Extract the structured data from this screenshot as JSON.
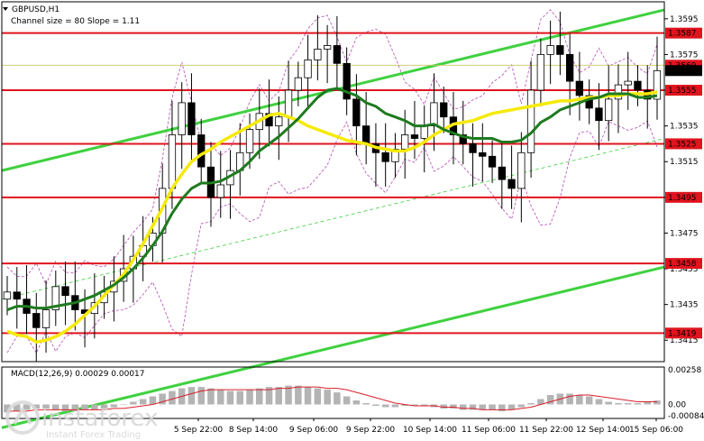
{
  "chart_data": {
    "type": "line",
    "title": "GBPUSD,H1",
    "subtitle": "Channel size = 80 Slope = 1.11",
    "price_axis": {
      "ylim": [
        1.3403,
        1.3603
      ],
      "ticks": [
        "1.3595",
        "1.3575",
        "1.3555",
        "1.3535",
        "1.3515",
        "1.3495",
        "1.3475",
        "1.3455",
        "1.3435",
        "1.3415"
      ]
    },
    "x_tick_labels": [
      "5 Sep 22:00",
      "8 Sep 14:00",
      "9 Sep 06:00",
      "9 Sep 22:00",
      "10 Sep 14:00",
      "11 Sep 06:00",
      "11 Sep 22:00",
      "12 Sep 14:00",
      "15 Sep 06:00"
    ],
    "levels": [
      {
        "price": 1.3587,
        "label": "1.3587"
      },
      {
        "price": 1.3555,
        "label": "1.3555"
      },
      {
        "price": 1.3525,
        "label": "1.3525"
      },
      {
        "price": 1.3495,
        "label": "1.3495"
      },
      {
        "price": 1.3458,
        "label": "1.3458"
      },
      {
        "price": 1.3419,
        "label": "1.3419"
      }
    ],
    "current_price": {
      "price": 1.3566,
      "label": "1.3566"
    },
    "behind_label": "1.3569",
    "close_series": [
      1.3442,
      1.3438,
      1.343,
      1.3422,
      1.3432,
      1.3445,
      1.344,
      1.3432,
      1.343,
      1.3436,
      1.3442,
      1.3448,
      1.3455,
      1.3462,
      1.3468,
      1.3475,
      1.35,
      1.353,
      1.3548,
      1.353,
      1.3512,
      1.3495,
      1.3502,
      1.351,
      1.352,
      1.3533,
      1.3542,
      1.3535,
      1.354,
      1.3555,
      1.3562,
      1.3572,
      1.3578,
      1.358,
      1.357,
      1.355,
      1.3535,
      1.3525,
      1.352,
      1.3515,
      1.3522,
      1.353,
      1.3528,
      1.3535,
      1.3548,
      1.354,
      1.353,
      1.3525,
      1.352,
      1.3518,
      1.3512,
      1.3505,
      1.35,
      1.352,
      1.3555,
      1.3575,
      1.358,
      1.3575,
      1.356,
      1.3552,
      1.3545,
      1.3538,
      1.355,
      1.3558,
      1.356,
      1.3555,
      1.355,
      1.3566
    ],
    "ma_fast": [
      1.3432,
      1.3434,
      1.3434,
      1.3433,
      1.3433,
      1.3434,
      1.3435,
      1.3436,
      1.3438,
      1.344,
      1.3443,
      1.3446,
      1.345,
      1.3455,
      1.3461,
      1.3468,
      1.3476,
      1.3486,
      1.3494,
      1.35,
      1.3503,
      1.3503,
      1.3504,
      1.3507,
      1.351,
      1.3515,
      1.3521,
      1.3525,
      1.3529,
      1.3534,
      1.3539,
      1.3545,
      1.3551,
      1.3555,
      1.3556,
      1.3554,
      1.3552,
      1.3548,
      1.3546,
      1.3542,
      1.354,
      1.3538,
      1.3535,
      1.3535,
      1.3536,
      1.3533,
      1.3531,
      1.3529,
      1.3528,
      1.3528,
      1.3528,
      1.3526,
      1.3526,
      1.3527,
      1.3531,
      1.3537,
      1.354,
      1.3544,
      1.3546,
      1.3548,
      1.355,
      1.3551,
      1.3553,
      1.3553,
      1.3553,
      1.3551,
      1.3551,
      1.3552
    ],
    "ma_slow": [
      1.342,
      1.3418,
      1.3417,
      1.3414,
      1.3415,
      1.3417,
      1.342,
      1.3424,
      1.3429,
      1.3434,
      1.344,
      1.3446,
      1.3452,
      1.346,
      1.3469,
      1.3479,
      1.3489,
      1.35,
      1.3508,
      1.3515,
      1.3519,
      1.3522,
      1.3526,
      1.3529,
      1.3532,
      1.3535,
      1.3538,
      1.3541,
      1.3542,
      1.354,
      1.3538,
      1.3535,
      1.3533,
      1.3531,
      1.3529,
      1.3527,
      1.3526,
      1.3525,
      1.3523,
      1.3522,
      1.3521,
      1.3521,
      1.3523,
      1.3526,
      1.353,
      1.3533,
      1.3536,
      1.3537,
      1.3538,
      1.354,
      1.3542,
      1.3543,
      1.3544,
      1.3545,
      1.3546,
      1.3547,
      1.3548,
      1.3549,
      1.3549,
      1.355,
      1.3551,
      1.3551,
      1.3552,
      1.3552,
      1.3553,
      1.3553,
      1.3553,
      1.3554
    ],
    "macd": {
      "label": "MACD(12,26,9) 0.00029 0.00017",
      "ylim": [
        -0.00084,
        0.00258
      ],
      "ticks": [
        "0.00258",
        "0.00",
        "-0.00084"
      ],
      "hist": [
        -0.0006,
        -0.0005,
        -0.0004,
        -0.0003,
        -0.0003,
        -0.0004,
        -0.0005,
        -0.0005,
        -0.0004,
        -0.0004,
        -0.0003,
        -0.0002,
        0.0,
        0.0002,
        0.0004,
        0.0006,
        0.0008,
        0.001,
        0.0012,
        0.0013,
        0.0013,
        0.0012,
        0.0011,
        0.001,
        0.001,
        0.0011,
        0.0012,
        0.0013,
        0.0013,
        0.0014,
        0.0014,
        0.0013,
        0.0012,
        0.0011,
        0.0009,
        0.0006,
        0.0003,
        0.0001,
        -0.0001,
        -0.0002,
        -0.0002,
        -0.0001,
        -0.0001,
        -0.0001,
        -0.0002,
        -0.0003,
        -0.0003,
        -0.0004,
        -0.0004,
        -0.0004,
        -0.0004,
        -0.0005,
        -0.0004,
        -0.0002,
        0.0001,
        0.0004,
        0.0007,
        0.0008,
        0.0008,
        0.0007,
        0.0006,
        0.0004,
        0.0002,
        0.0001,
        0.0001,
        0.0001,
        0.0002,
        0.0003
      ],
      "signal": [
        -0.0005,
        -0.0005,
        -0.0005,
        -0.0004,
        -0.0004,
        -0.0004,
        -0.0004,
        -0.0004,
        -0.0004,
        -0.0004,
        -0.0004,
        -0.0003,
        -0.0003,
        -0.0002,
        -0.0001,
        0.0,
        0.0002,
        0.0004,
        0.0006,
        0.0008,
        0.001,
        0.0011,
        0.0011,
        0.0011,
        0.0011,
        0.0011,
        0.0011,
        0.0011,
        0.0012,
        0.0012,
        0.0013,
        0.0013,
        0.0013,
        0.0012,
        0.0012,
        0.0011,
        0.0009,
        0.0007,
        0.0005,
        0.0003,
        0.0001,
        0.0,
        -0.0001,
        -0.0001,
        -0.0001,
        -0.0002,
        -0.0002,
        -0.0003,
        -0.0003,
        -0.0004,
        -0.0004,
        -0.0004,
        -0.0004,
        -0.0003,
        -0.0002,
        0.0,
        0.0002,
        0.0004,
        0.0006,
        0.0007,
        0.0007,
        0.0006,
        0.0005,
        0.0004,
        0.0003,
        0.0002,
        0.0002,
        0.0002
      ]
    },
    "colors": {
      "level": "#e0141e",
      "ma_fast": "#1f7a1f",
      "ma_slow": "#f5ea0a",
      "channel": "#3fd13f",
      "bollinger": "#b34ab3",
      "candle": "#000000",
      "macd_hist": "#b4b4b4",
      "macd_signal": "#d8202a"
    },
    "grid": false
  },
  "watermark": {
    "brand": "instaforex",
    "tagline": "Instant Forex Trading"
  }
}
